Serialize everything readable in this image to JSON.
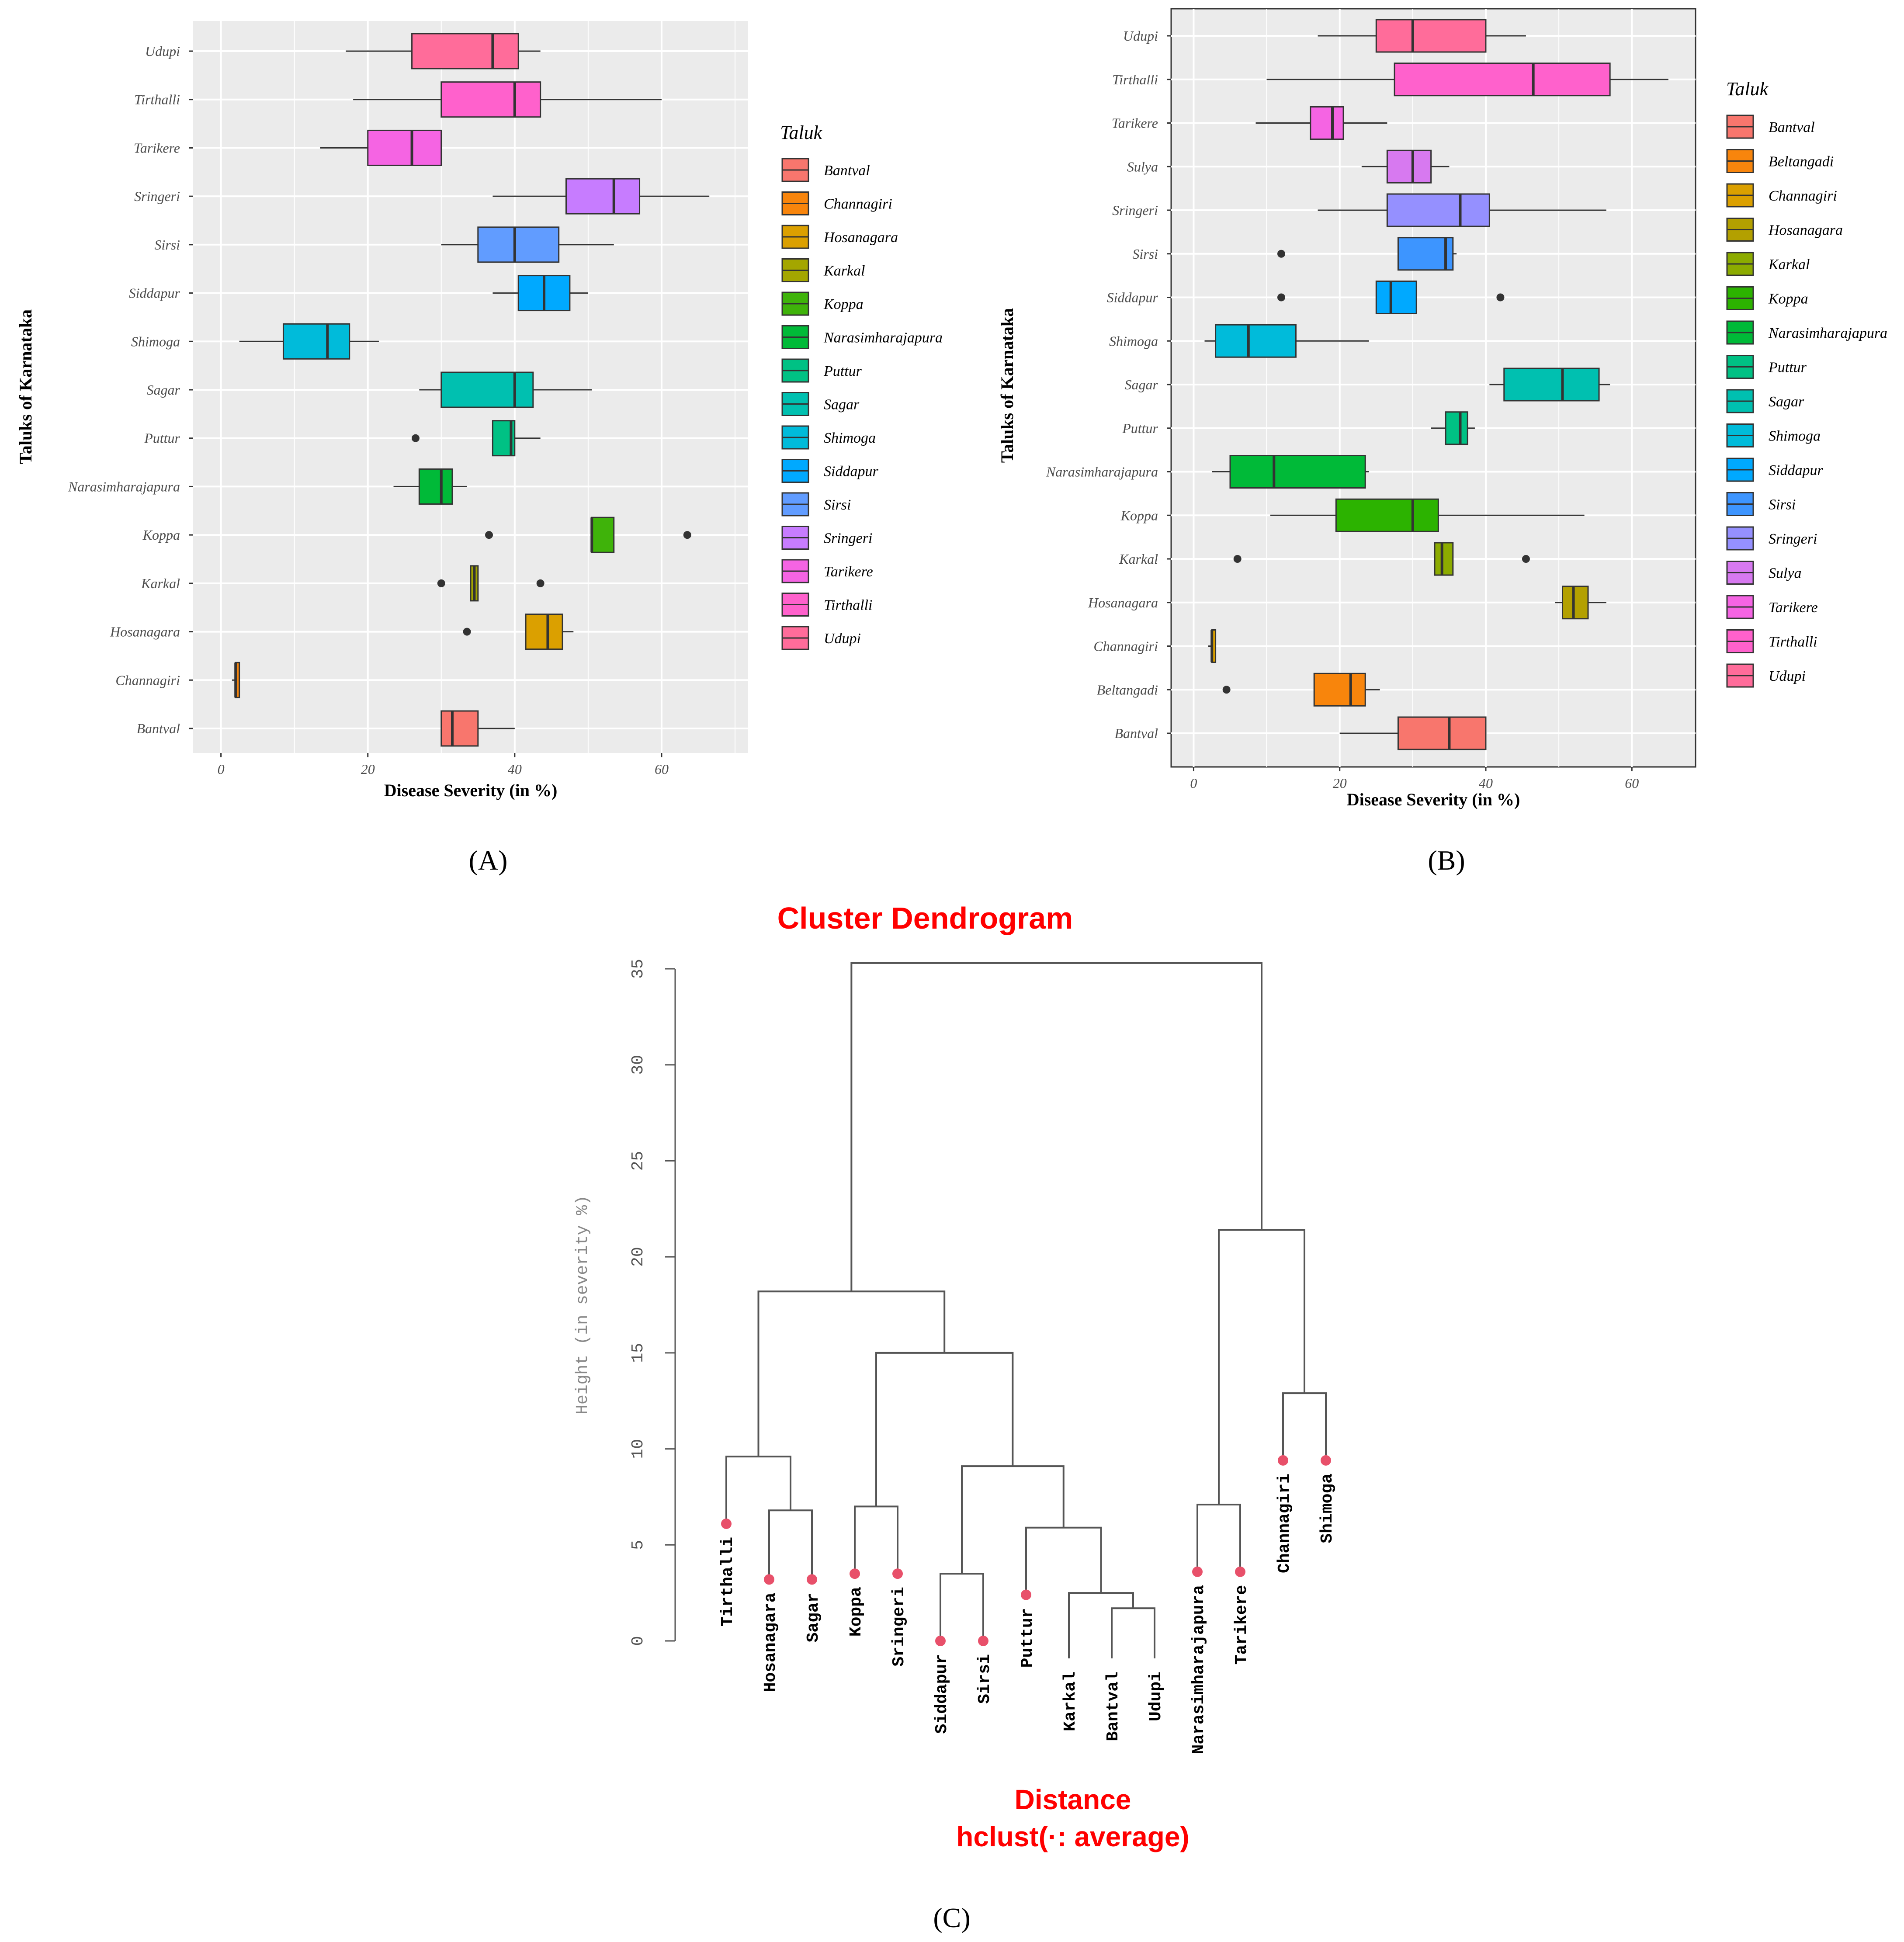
{
  "panels": {
    "a_label": "(A)",
    "b_label": "(B)",
    "c_label": "(C)"
  },
  "chart_data": [
    {
      "type": "boxplot",
      "orientation": "horizontal",
      "panel": "A",
      "xlabel": "Disease Severity (in %)",
      "ylabel": "Taluks of Karnataka",
      "xlim": [
        -2,
        70
      ],
      "xticks": [
        0,
        20,
        40,
        60
      ],
      "legend_title": "Taluk",
      "legend": [
        {
          "name": "Bantval",
          "color": "#F8766D"
        },
        {
          "name": "Channagiri",
          "color": "#F8850C"
        },
        {
          "name": "Hosanagara",
          "color": "#DBA000"
        },
        {
          "name": "Karkal",
          "color": "#A4A600"
        },
        {
          "name": "Koppa",
          "color": "#3FB30A"
        },
        {
          "name": "Narasimharajapura",
          "color": "#00BA38"
        },
        {
          "name": "Puttur",
          "color": "#00C184"
        },
        {
          "name": "Sagar",
          "color": "#00C0B0"
        },
        {
          "name": "Shimoga",
          "color": "#00BBDA"
        },
        {
          "name": "Siddapur",
          "color": "#00A9FF"
        },
        {
          "name": "Sirsi",
          "color": "#619CFF"
        },
        {
          "name": "Sringeri",
          "color": "#C77CFF"
        },
        {
          "name": "Tarikere",
          "color": "#F564E3"
        },
        {
          "name": "Tirthalli",
          "color": "#FF61CC"
        },
        {
          "name": "Udupi",
          "color": "#FF6C9A"
        }
      ],
      "boxes": [
        {
          "name": "Udupi",
          "color": "#FF6C9A",
          "wmin": 17,
          "q1": 26,
          "median": 37,
          "q3": 40.5,
          "wmax": 43.5,
          "outliers": []
        },
        {
          "name": "Tirthalli",
          "color": "#FF61CC",
          "wmin": 18,
          "q1": 30,
          "median": 40,
          "q3": 43.5,
          "wmax": 60,
          "outliers": []
        },
        {
          "name": "Tarikere",
          "color": "#F564E3",
          "wmin": 13.5,
          "q1": 20,
          "median": 26,
          "q3": 30,
          "wmax": 30,
          "outliers": []
        },
        {
          "name": "Sringeri",
          "color": "#C77CFF",
          "wmin": 37,
          "q1": 47,
          "median": 53.5,
          "q3": 57,
          "wmax": 66.5,
          "outliers": []
        },
        {
          "name": "Sirsi",
          "color": "#619CFF",
          "wmin": 30,
          "q1": 35,
          "median": 40,
          "q3": 46,
          "wmax": 53.5,
          "outliers": []
        },
        {
          "name": "Siddapur",
          "color": "#00A9FF",
          "wmin": 37,
          "q1": 40.5,
          "median": 44,
          "q3": 47.5,
          "wmax": 50,
          "outliers": []
        },
        {
          "name": "Shimoga",
          "color": "#00BBDA",
          "wmin": 2.5,
          "q1": 8.5,
          "median": 14.5,
          "q3": 17.5,
          "wmax": 21.5,
          "outliers": []
        },
        {
          "name": "Sagar",
          "color": "#00C0B0",
          "wmin": 27,
          "q1": 30,
          "median": 40,
          "q3": 42.5,
          "wmax": 50.5,
          "outliers": []
        },
        {
          "name": "Puttur",
          "color": "#00C184",
          "wmin": 37,
          "q1": 37,
          "median": 39.5,
          "q3": 40,
          "wmax": 43.5,
          "outliers": [
            26.5
          ]
        },
        {
          "name": "Narasimharajapura",
          "color": "#00BA38",
          "wmin": 23.5,
          "q1": 27,
          "median": 30,
          "q3": 31.5,
          "wmax": 33.5,
          "outliers": []
        },
        {
          "name": "Koppa",
          "color": "#3FB30A",
          "wmin": 50.5,
          "q1": 50.5,
          "median": 50.5,
          "q3": 53.5,
          "wmax": 53.5,
          "outliers": [
            36.5,
            63.5
          ]
        },
        {
          "name": "Karkal",
          "color": "#A4A600",
          "wmin": 34,
          "q1": 34,
          "median": 34.5,
          "q3": 35,
          "wmax": 35,
          "outliers": [
            30,
            43.5
          ]
        },
        {
          "name": "Hosanagara",
          "color": "#DBA000",
          "wmin": 41.5,
          "q1": 41.5,
          "median": 44.5,
          "q3": 46.5,
          "wmax": 48,
          "outliers": [
            33.5
          ]
        },
        {
          "name": "Channagiri",
          "color": "#F8850C",
          "wmin": 1.5,
          "q1": 2,
          "median": 2,
          "q3": 2.5,
          "wmax": 2.5,
          "outliers": []
        },
        {
          "name": "Bantval",
          "color": "#F8766D",
          "wmin": 30,
          "q1": 30,
          "median": 31.5,
          "q3": 35,
          "wmax": 40,
          "outliers": []
        }
      ]
    },
    {
      "type": "boxplot",
      "orientation": "horizontal",
      "panel": "B",
      "xlabel": "Disease Severity (in %)",
      "ylabel": "Taluks of Karnataka",
      "xlim": [
        -2,
        68
      ],
      "xticks": [
        0,
        20,
        40,
        60
      ],
      "legend_title": "Taluk",
      "legend": [
        {
          "name": "Bantval",
          "color": "#F8766D"
        },
        {
          "name": "Beltangadi",
          "color": "#F8850C"
        },
        {
          "name": "Channagiri",
          "color": "#DBA000"
        },
        {
          "name": "Hosanagara",
          "color": "#B3A000"
        },
        {
          "name": "Karkal",
          "color": "#8CAB00"
        },
        {
          "name": "Koppa",
          "color": "#2CB300"
        },
        {
          "name": "Narasimharajapura",
          "color": "#00BA38"
        },
        {
          "name": "Puttur",
          "color": "#00C184"
        },
        {
          "name": "Sagar",
          "color": "#00C0B0"
        },
        {
          "name": "Shimoga",
          "color": "#00BBDA"
        },
        {
          "name": "Siddapur",
          "color": "#00A9FF"
        },
        {
          "name": "Sirsi",
          "color": "#3D95FF"
        },
        {
          "name": "Sringeri",
          "color": "#9590FF"
        },
        {
          "name": "Sulya",
          "color": "#D779F0"
        },
        {
          "name": "Tarikere",
          "color": "#F564E3"
        },
        {
          "name": "Tirthalli",
          "color": "#FF61CC"
        },
        {
          "name": "Udupi",
          "color": "#FF6C9A"
        }
      ],
      "boxes": [
        {
          "name": "Udupi",
          "color": "#FF6C9A",
          "wmin": 17,
          "q1": 25,
          "median": 30,
          "q3": 40,
          "wmax": 45.5,
          "outliers": []
        },
        {
          "name": "Tirthalli",
          "color": "#FF61CC",
          "wmin": 10,
          "q1": 27.5,
          "median": 46.5,
          "q3": 57,
          "wmax": 65,
          "outliers": []
        },
        {
          "name": "Tarikere",
          "color": "#F564E3",
          "wmin": 8.5,
          "q1": 16,
          "median": 19,
          "q3": 20.5,
          "wmax": 26.5,
          "outliers": []
        },
        {
          "name": "Sulya",
          "color": "#D779F0",
          "wmin": 23,
          "q1": 26.5,
          "median": 30,
          "q3": 32.5,
          "wmax": 35,
          "outliers": []
        },
        {
          "name": "Sringeri",
          "color": "#9590FF",
          "wmin": 17,
          "q1": 26.5,
          "median": 36.5,
          "q3": 40.5,
          "wmax": 56.5,
          "outliers": []
        },
        {
          "name": "Sirsi",
          "color": "#3D95FF",
          "wmin": 28,
          "q1": 28,
          "median": 34.5,
          "q3": 35.5,
          "wmax": 36,
          "outliers": [
            12
          ]
        },
        {
          "name": "Siddapur",
          "color": "#00A9FF",
          "wmin": 25,
          "q1": 25,
          "median": 27,
          "q3": 30.5,
          "wmax": 30.5,
          "outliers": [
            12,
            42
          ]
        },
        {
          "name": "Shimoga",
          "color": "#00BBDA",
          "wmin": 1.5,
          "q1": 3,
          "median": 7.5,
          "q3": 14,
          "wmax": 24,
          "outliers": []
        },
        {
          "name": "Sagar",
          "color": "#00C0B0",
          "wmin": 40.5,
          "q1": 42.5,
          "median": 50.5,
          "q3": 55.5,
          "wmax": 57,
          "outliers": []
        },
        {
          "name": "Puttur",
          "color": "#00C184",
          "wmin": 32.5,
          "q1": 34.5,
          "median": 36.5,
          "q3": 37.5,
          "wmax": 38.5,
          "outliers": []
        },
        {
          "name": "Narasimharajapura",
          "color": "#00BA38",
          "wmin": 2.5,
          "q1": 5,
          "median": 11,
          "q3": 23.5,
          "wmax": 24,
          "outliers": []
        },
        {
          "name": "Koppa",
          "color": "#2CB300",
          "wmin": 10.5,
          "q1": 19.5,
          "median": 30,
          "q3": 33.5,
          "wmax": 53.5,
          "outliers": []
        },
        {
          "name": "Karkal",
          "color": "#8CAB00",
          "wmin": 33,
          "q1": 33,
          "median": 34,
          "q3": 35.5,
          "wmax": 35.5,
          "outliers": [
            6,
            45.5
          ]
        },
        {
          "name": "Hosanagara",
          "color": "#B3A000",
          "wmin": 49.5,
          "q1": 50.5,
          "median": 52,
          "q3": 54,
          "wmax": 56.5,
          "outliers": []
        },
        {
          "name": "Channagiri",
          "color": "#DBA000",
          "wmin": 2,
          "q1": 2.5,
          "median": 2.5,
          "q3": 3,
          "wmax": 3,
          "outliers": []
        },
        {
          "name": "Beltangadi",
          "color": "#F8850C",
          "wmin": 16.5,
          "q1": 16.5,
          "median": 21.5,
          "q3": 23.5,
          "wmax": 25.5,
          "outliers": [
            4.5
          ]
        },
        {
          "name": "Bantval",
          "color": "#F8766D",
          "wmin": 20,
          "q1": 28,
          "median": 35,
          "q3": 40,
          "wmax": 40,
          "outliers": []
        }
      ]
    },
    {
      "type": "dendrogram",
      "panel": "C",
      "title": "Cluster Dendrogram",
      "xlabel": "Distance",
      "xsub": "hclust(*, \"average\")",
      "xsub_display": "hclust(·: average)",
      "ylabel": "Height (in severity %)",
      "ylim": [
        0,
        35
      ],
      "yticks": [
        0,
        5,
        10,
        15,
        20,
        25,
        30,
        35
      ],
      "leaves": [
        {
          "name": "Tirthalli",
          "height": 6.1
        },
        {
          "name": "Hosanagara",
          "height": 3.2
        },
        {
          "name": "Sagar",
          "height": 3.2
        },
        {
          "name": "Koppa",
          "height": 3.5
        },
        {
          "name": "Sringeri",
          "height": 3.5
        },
        {
          "name": "Siddapur",
          "height": 0
        },
        {
          "name": "Sirsi",
          "height": 0
        },
        {
          "name": "Puttur",
          "height": 2.4
        },
        {
          "name": "Karkal",
          "height": -1
        },
        {
          "name": "Bantval",
          "height": -1
        },
        {
          "name": "Udupi",
          "height": -1
        },
        {
          "name": "Narasimharajapura",
          "height": 3.6
        },
        {
          "name": "Tarikere",
          "height": 3.6
        },
        {
          "name": "Channagiri",
          "height": 9.4
        },
        {
          "name": "Shimoga",
          "height": 9.4
        }
      ],
      "merges": [
        {
          "left": "Bantval",
          "right": "Udupi",
          "height": 1.7
        },
        {
          "left": "Karkal",
          "right": "m1",
          "height": 2.5
        },
        {
          "left": "Siddapur",
          "right": "Sirsi",
          "height": 3.5
        },
        {
          "left": "Puttur",
          "right": "m2",
          "height": 5.9
        },
        {
          "left": "Hosanagara",
          "right": "Sagar",
          "height": 6.8
        },
        {
          "left": "Koppa",
          "right": "Sringeri",
          "height": 7.0
        },
        {
          "left": "Narasimharajapura",
          "right": "Tarikere",
          "height": 7.1
        },
        {
          "left": "m3",
          "right": "m4",
          "height": 9.1
        },
        {
          "left": "Tirthalli",
          "right": "m5",
          "height": 9.6
        },
        {
          "left": "Channagiri",
          "right": "Shimoga",
          "height": 12.9
        },
        {
          "left": "m6",
          "right": "m8",
          "height": 15.0
        },
        {
          "left": "m9",
          "right": "m11",
          "height": 18.2
        },
        {
          "left": "m7",
          "right": "m10",
          "height": 21.4
        },
        {
          "left": "m12",
          "right": "m13",
          "height": 35.3
        }
      ]
    }
  ]
}
